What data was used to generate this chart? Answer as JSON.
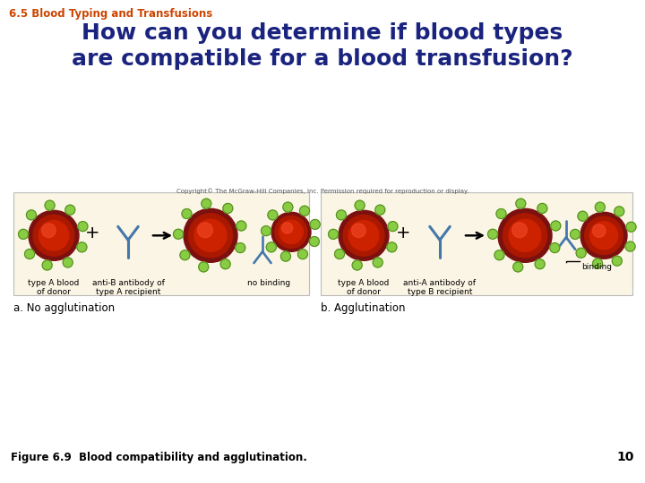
{
  "title_section": "6.5 Blood Typing and Transfusions",
  "title_section_color": "#cc4400",
  "main_title": "How can you determine if blood types\nare compatible for a blood transfusion?",
  "main_title_color": "#1a237e",
  "copyright_text": "Copyright© The McGraw-Hill Companies, Inc. Permission required for reproduction or display.",
  "panel_bg": "#faf5e4",
  "panel_border": "#bbbbbb",
  "label_a_title": "a. No agglutination",
  "label_b_title": "b. Agglutination",
  "left_labels": [
    "type A blood\nof donor",
    "anti-B antibody of\ntype A recipient"
  ],
  "right_labels": [
    "type A blood\nof donor",
    "anti-A antibody of\ntype B recipient"
  ],
  "no_binding_label": "no binding",
  "binding_label": "binding",
  "figure_caption": "Figure 6.9  Blood compatibility and agglutination.",
  "page_number": "10",
  "bg_color": "#ffffff",
  "antibody_color": "#4477aa",
  "rbc_outer": "#7a1010",
  "rbc_mid": "#cc2200",
  "rbc_inner": "#ee4422",
  "bump_color": "#88cc44",
  "bump_dark": "#558822"
}
